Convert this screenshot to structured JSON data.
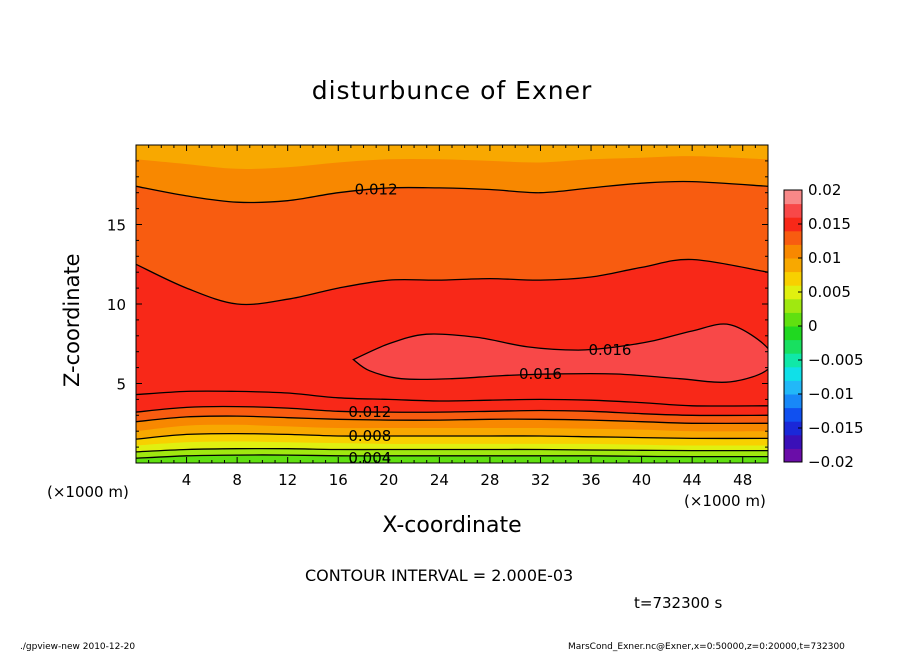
{
  "chart_data": {
    "type": "heatmap",
    "title": "disturbunce of Exner",
    "xlabel": "X-coordinate",
    "ylabel": "Z-coordinate",
    "x_unit_label": "(×1000 m)",
    "xlim": [
      0,
      50
    ],
    "ylim": [
      0,
      20
    ],
    "x_ticks": [
      4,
      8,
      12,
      16,
      20,
      24,
      28,
      32,
      36,
      40,
      44,
      48
    ],
    "y_ticks": [
      5,
      10,
      15
    ],
    "contour_interval_text": "CONTOUR INTERVAL = 2.000E-03",
    "contour_labels": [
      {
        "text": "0.012",
        "x": 19,
        "z": 17.2
      },
      {
        "text": "0.016",
        "x": 37.5,
        "z": 7.1
      },
      {
        "text": "0.016",
        "x": 32,
        "z": 5.6
      },
      {
        "text": "0.012",
        "x": 18.5,
        "z": 3.2
      },
      {
        "text": "0.008",
        "x": 18.5,
        "z": 1.7
      },
      {
        "text": "0.004",
        "x": 18.5,
        "z": 0.3
      }
    ],
    "colorbar": {
      "tick_labels": [
        "0.02",
        "0.015",
        "0.01",
        "0.005",
        "0",
        "−0.005",
        "−0.01",
        "−0.015",
        "−0.02"
      ],
      "levels": [
        -0.02,
        -0.018,
        -0.016,
        -0.014,
        -0.012,
        -0.01,
        -0.008,
        -0.006,
        -0.004,
        -0.002,
        0,
        0.002,
        0.004,
        0.006,
        0.008,
        0.01,
        0.012,
        0.014,
        0.016,
        0.018,
        0.02
      ],
      "colors": [
        "#6a0da8",
        "#3a10b8",
        "#1a28d8",
        "#1050f0",
        "#1888f8",
        "#22b8f8",
        "#10e0e8",
        "#10e8a8",
        "#18e060",
        "#20d820",
        "#60e010",
        "#a0e810",
        "#e0f010",
        "#f8d000",
        "#f8a800",
        "#f88800",
        "#f85c10",
        "#f82818",
        "#f84848",
        "#f88888"
      ]
    },
    "bands": [
      {
        "upper_z": [
          0.3,
          0.45,
          0.5,
          0.5,
          0.45,
          0.45,
          0.45,
          0.45,
          0.45,
          0.45,
          0.42,
          0.4,
          0.4
        ],
        "color": "#60e010"
      },
      {
        "upper_z": [
          0.7,
          0.85,
          0.9,
          0.9,
          0.85,
          0.85,
          0.85,
          0.85,
          0.85,
          0.82,
          0.8,
          0.78,
          0.78
        ],
        "color": "#a0e810"
      },
      {
        "upper_z": [
          1.1,
          1.3,
          1.35,
          1.3,
          1.25,
          1.2,
          1.2,
          1.2,
          1.2,
          1.2,
          1.15,
          1.1,
          1.1
        ],
        "color": "#e0f010"
      },
      {
        "upper_z": [
          1.5,
          1.8,
          1.85,
          1.8,
          1.7,
          1.7,
          1.7,
          1.7,
          1.7,
          1.65,
          1.6,
          1.55,
          1.55
        ],
        "color": "#f8d000"
      },
      {
        "upper_z": [
          2.0,
          2.35,
          2.4,
          2.3,
          2.2,
          2.2,
          2.2,
          2.2,
          2.2,
          2.15,
          2.1,
          2.0,
          2.0
        ],
        "color": "#f8a800"
      },
      {
        "upper_z": [
          2.6,
          2.9,
          2.95,
          2.85,
          2.75,
          2.7,
          2.7,
          2.75,
          2.75,
          2.7,
          2.6,
          2.5,
          2.5
        ],
        "color": "#f88800"
      },
      {
        "upper_z": [
          3.2,
          3.5,
          3.55,
          3.45,
          3.25,
          3.2,
          3.2,
          3.25,
          3.3,
          3.25,
          3.1,
          3.0,
          3.0
        ],
        "color": "#f85c10"
      },
      {
        "upper_z": [
          4.3,
          4.5,
          4.5,
          4.4,
          4.1,
          4.0,
          3.9,
          3.95,
          4.0,
          3.95,
          3.8,
          3.6,
          3.6
        ],
        "color": "#f82818"
      },
      {
        "upper_z": [
          12.5,
          11.0,
          10.0,
          10.3,
          11.0,
          11.5,
          11.5,
          11.6,
          11.5,
          11.7,
          12.3,
          12.8,
          12.0
        ],
        "color": "#f82818"
      },
      {
        "upper_z": [
          17.4,
          16.8,
          16.4,
          16.5,
          17.0,
          17.3,
          17.3,
          17.2,
          17.0,
          17.3,
          17.6,
          17.7,
          17.4
        ],
        "color": "#f85c10"
      },
      {
        "upper_z": [
          19.1,
          18.8,
          18.5,
          18.6,
          18.9,
          19.1,
          19.1,
          19.0,
          18.9,
          19.1,
          19.2,
          19.3,
          19.1
        ],
        "color": "#f88800"
      },
      {
        "upper_z": [
          20,
          20,
          20,
          20,
          20,
          20,
          20,
          20,
          20,
          20,
          20,
          20,
          20
        ],
        "color": "#f8a800"
      }
    ],
    "band_x": [
      0,
      4,
      8,
      12,
      16,
      20,
      24,
      28,
      32,
      36,
      40,
      44,
      50
    ],
    "maximum_region": {
      "outline": [
        [
          17.2,
          6.5
        ],
        [
          20,
          7.5
        ],
        [
          23,
          8.1
        ],
        [
          27,
          7.9
        ],
        [
          31,
          7.3
        ],
        [
          35,
          7.1
        ],
        [
          38,
          7.3
        ],
        [
          41,
          7.7
        ],
        [
          44,
          8.3
        ],
        [
          47,
          8.7
        ],
        [
          50,
          7.2
        ],
        [
          50,
          5.9
        ],
        [
          47,
          5.1
        ],
        [
          43,
          5.3
        ],
        [
          38,
          5.6
        ],
        [
          33,
          5.6
        ],
        [
          29,
          5.5
        ],
        [
          25,
          5.3
        ],
        [
          21,
          5.3
        ],
        [
          18.5,
          5.8
        ],
        [
          17.2,
          6.5
        ]
      ],
      "color": "#f84848"
    },
    "contour_lines": [
      {
        "level": "0.012",
        "points": [
          [
            0,
            17.4
          ],
          [
            4,
            16.8
          ],
          [
            8,
            16.4
          ],
          [
            12,
            16.5
          ],
          [
            16,
            17.0
          ],
          [
            20,
            17.3
          ],
          [
            24,
            17.3
          ],
          [
            28,
            17.2
          ],
          [
            32,
            17.0
          ],
          [
            36,
            17.3
          ],
          [
            40,
            17.6
          ],
          [
            44,
            17.7
          ],
          [
            50,
            17.4
          ]
        ]
      },
      {
        "level": "0.014",
        "points": [
          [
            0,
            12.5
          ],
          [
            4,
            11.0
          ],
          [
            8,
            10.0
          ],
          [
            12,
            10.3
          ],
          [
            16,
            11.0
          ],
          [
            20,
            11.5
          ],
          [
            24,
            11.5
          ],
          [
            28,
            11.6
          ],
          [
            32,
            11.5
          ],
          [
            36,
            11.7
          ],
          [
            40,
            12.3
          ],
          [
            44,
            12.8
          ],
          [
            50,
            12.0
          ]
        ]
      },
      {
        "level": "0.014",
        "points": [
          [
            0,
            4.3
          ],
          [
            4,
            4.5
          ],
          [
            8,
            4.5
          ],
          [
            12,
            4.4
          ],
          [
            16,
            4.1
          ],
          [
            20,
            4.0
          ],
          [
            24,
            3.9
          ],
          [
            28,
            3.95
          ],
          [
            32,
            4.0
          ],
          [
            36,
            3.95
          ],
          [
            40,
            3.8
          ],
          [
            44,
            3.6
          ],
          [
            50,
            3.6
          ]
        ]
      },
      {
        "level": "0.012",
        "points": [
          [
            0,
            3.2
          ],
          [
            4,
            3.5
          ],
          [
            8,
            3.55
          ],
          [
            12,
            3.45
          ],
          [
            16,
            3.25
          ],
          [
            20,
            3.2
          ],
          [
            24,
            3.2
          ],
          [
            28,
            3.25
          ],
          [
            32,
            3.3
          ],
          [
            36,
            3.25
          ],
          [
            40,
            3.1
          ],
          [
            44,
            3.0
          ],
          [
            50,
            3.0
          ]
        ]
      },
      {
        "level": "0.010",
        "points": [
          [
            0,
            2.6
          ],
          [
            4,
            2.9
          ],
          [
            8,
            2.95
          ],
          [
            12,
            2.85
          ],
          [
            16,
            2.75
          ],
          [
            20,
            2.7
          ],
          [
            24,
            2.7
          ],
          [
            28,
            2.75
          ],
          [
            32,
            2.75
          ],
          [
            36,
            2.7
          ],
          [
            40,
            2.6
          ],
          [
            44,
            2.5
          ],
          [
            50,
            2.5
          ]
        ]
      },
      {
        "level": "0.008",
        "points": [
          [
            0,
            1.5
          ],
          [
            4,
            1.8
          ],
          [
            8,
            1.85
          ],
          [
            12,
            1.8
          ],
          [
            16,
            1.7
          ],
          [
            20,
            1.7
          ],
          [
            24,
            1.7
          ],
          [
            28,
            1.7
          ],
          [
            32,
            1.7
          ],
          [
            36,
            1.65
          ],
          [
            40,
            1.6
          ],
          [
            44,
            1.55
          ],
          [
            50,
            1.55
          ]
        ]
      },
      {
        "level": "0.006",
        "points": [
          [
            0,
            0.7
          ],
          [
            4,
            0.85
          ],
          [
            8,
            0.9
          ],
          [
            12,
            0.9
          ],
          [
            16,
            0.85
          ],
          [
            20,
            0.85
          ],
          [
            24,
            0.85
          ],
          [
            28,
            0.85
          ],
          [
            32,
            0.85
          ],
          [
            36,
            0.82
          ],
          [
            40,
            0.8
          ],
          [
            44,
            0.78
          ],
          [
            50,
            0.78
          ]
        ]
      },
      {
        "level": "0.004",
        "points": [
          [
            0,
            0.3
          ],
          [
            4,
            0.45
          ],
          [
            8,
            0.5
          ],
          [
            12,
            0.5
          ],
          [
            16,
            0.45
          ],
          [
            20,
            0.45
          ],
          [
            24,
            0.45
          ],
          [
            28,
            0.45
          ],
          [
            32,
            0.45
          ],
          [
            36,
            0.45
          ],
          [
            40,
            0.42
          ],
          [
            44,
            0.4
          ],
          [
            50,
            0.4
          ]
        ]
      }
    ]
  },
  "time_label": "t=732300 s",
  "footer_left": "./gpview-new  2010-12-20",
  "footer_right": "MarsCond_Exner.nc@Exner,x=0:50000,z=0:20000,t=732300"
}
